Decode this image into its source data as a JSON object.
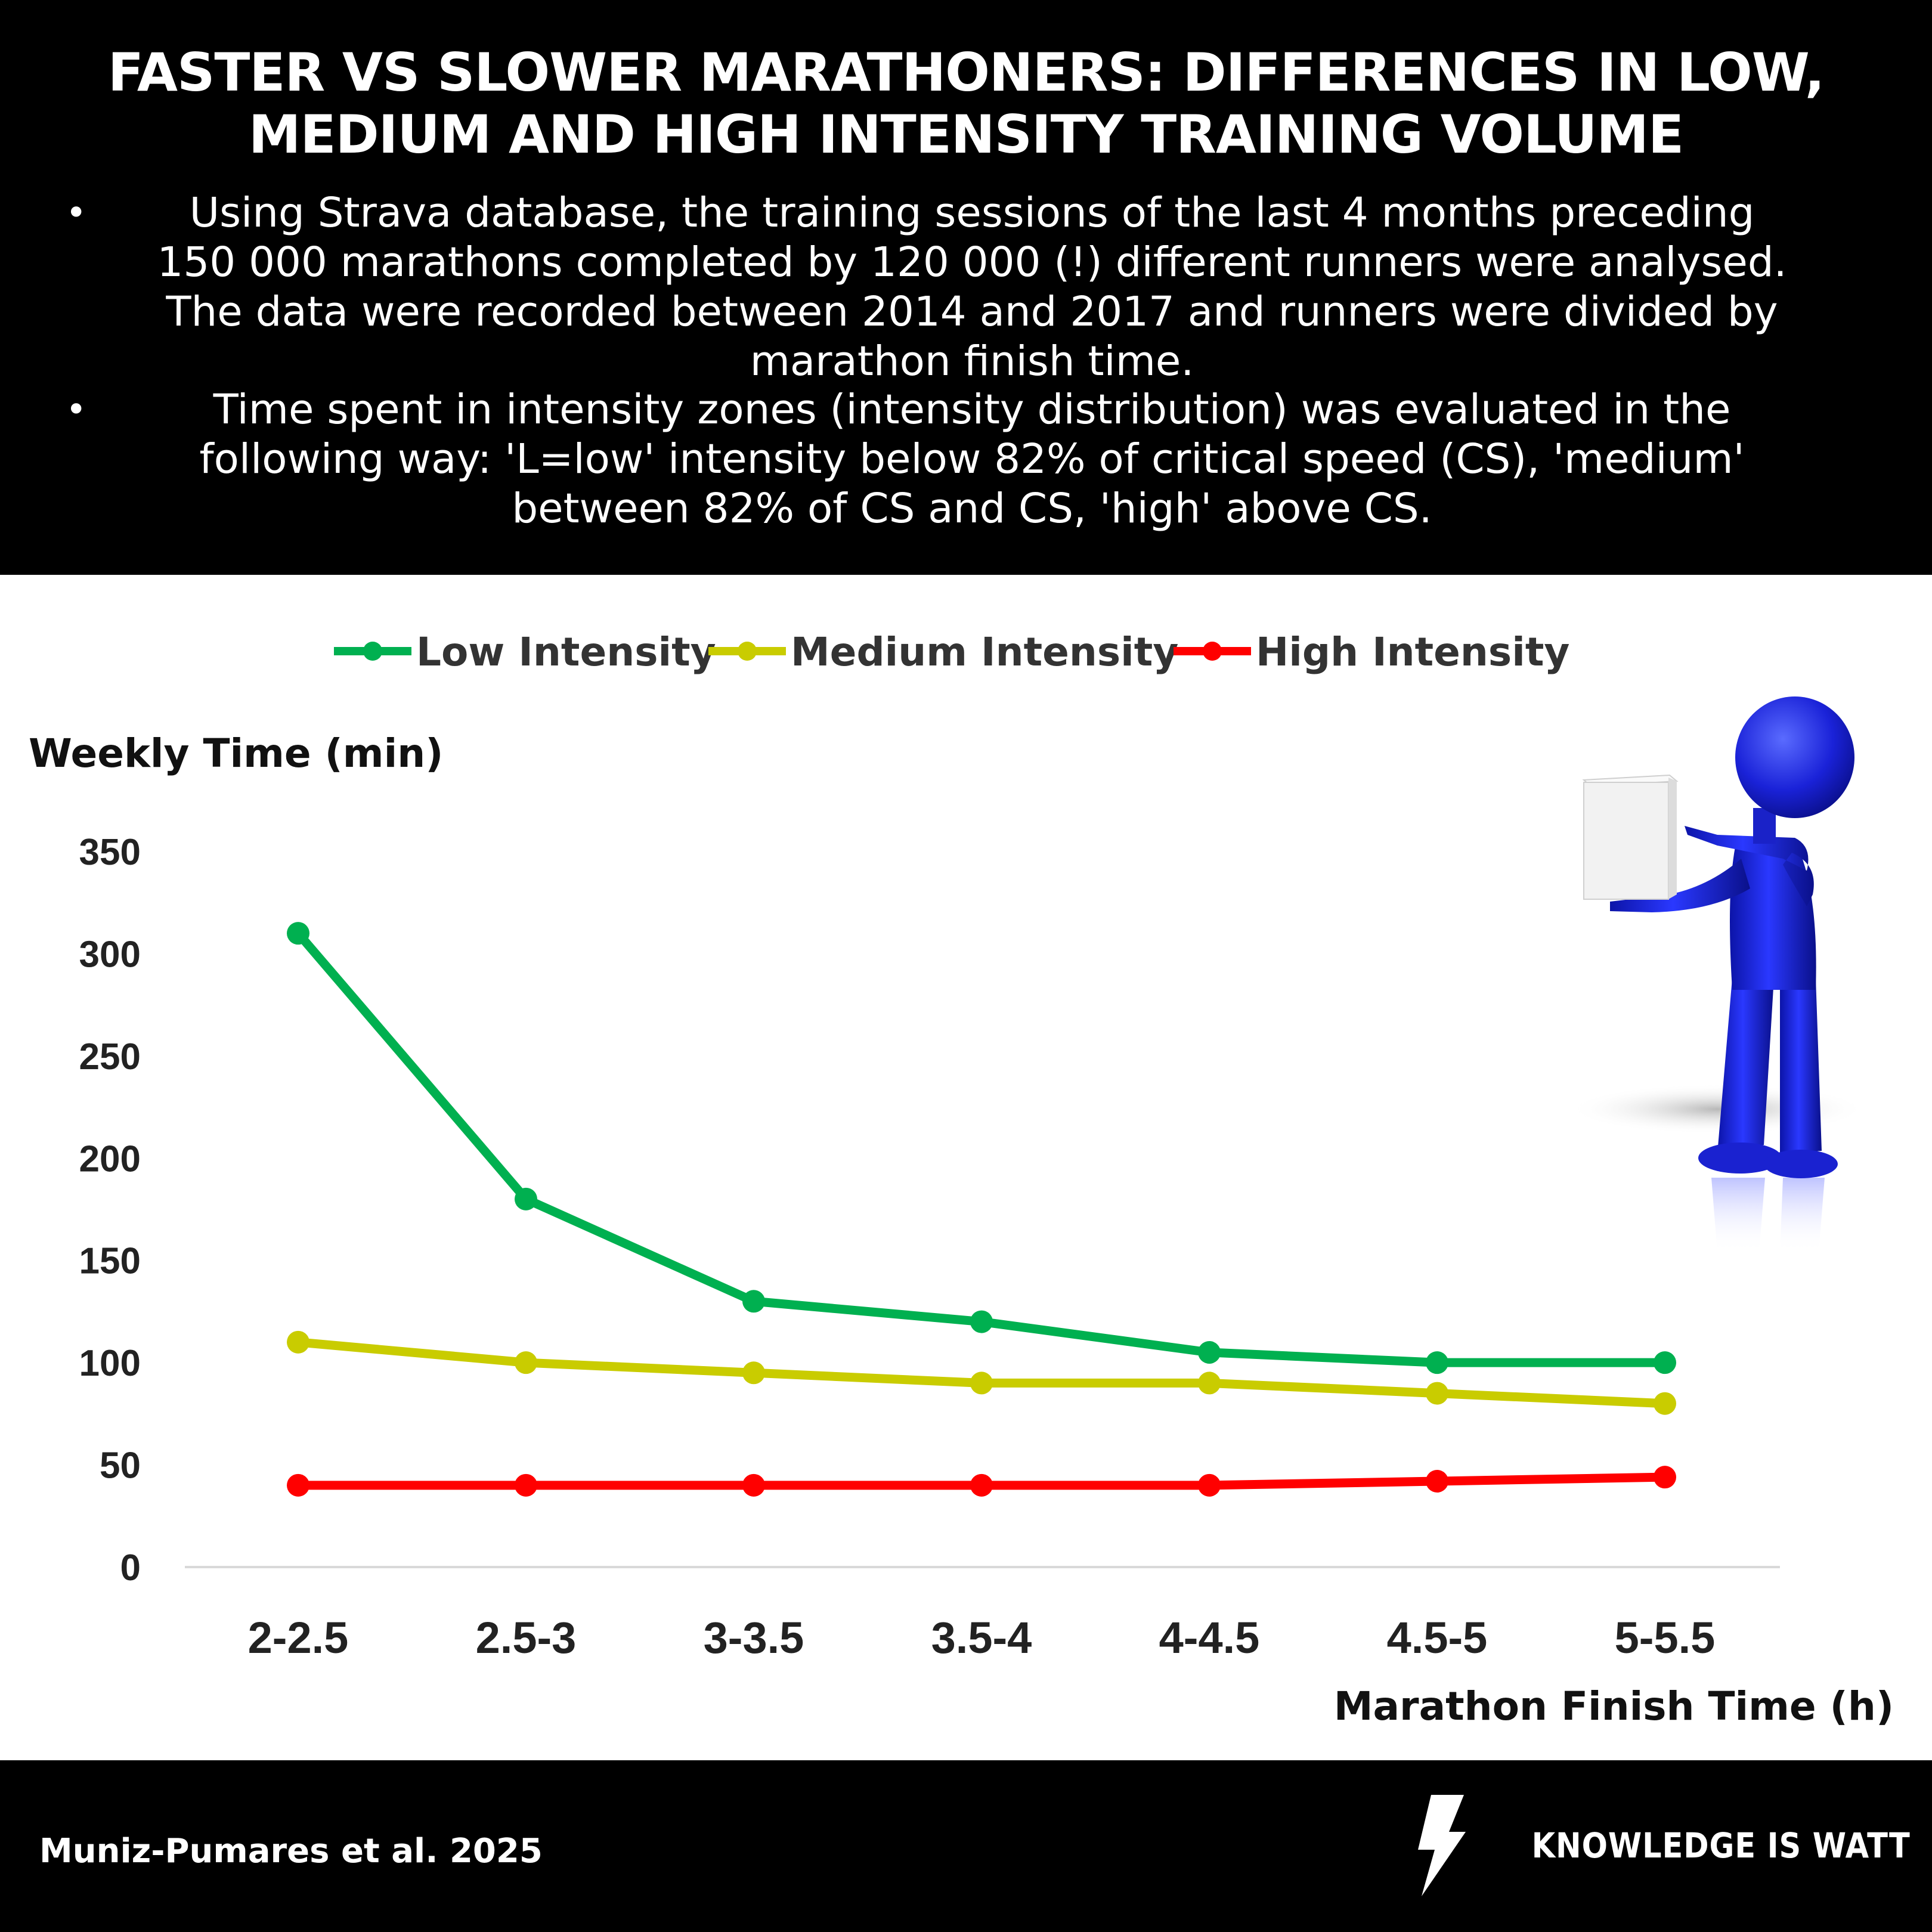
{
  "header": {
    "title_line1": "FASTER VS SLOWER MARATHONERS: DIFFERENCES IN LOW,",
    "title_line2": "MEDIUM AND HIGH INTENSITY TRAINING VOLUME",
    "bullets": [
      {
        "lines": [
          "Using Strava database, the training sessions of the last 4 months preceding",
          "150 000 marathons completed by 120 000 (!) different runners were analysed.",
          "The data were recorded between 2014 and 2017 and runners were divided by",
          "marathon finish time."
        ]
      },
      {
        "lines": [
          "Time spent in intensity zones (intensity distribution) was evaluated in the",
          "following way: 'L=low' intensity below 82% of critical speed (CS), 'medium'",
          "between 82% of CS and CS, 'high' above CS."
        ]
      }
    ]
  },
  "footer": {
    "citation": "Muniz-Pumares et al. 2025",
    "brand": "KNOWLEDGE IS WATT"
  },
  "chart_data": {
    "type": "line",
    "ylabel": "Weekly Time (min)",
    "xlabel": "Marathon Finish Time (h)",
    "categories": [
      "2-2.5",
      "2.5-3",
      "3-3.5",
      "3.5-4",
      "4-4.5",
      "4.5-5",
      "5-5.5"
    ],
    "ylim": [
      0,
      350
    ],
    "yticks": [
      0,
      50,
      100,
      150,
      200,
      250,
      300,
      350
    ],
    "legend_position": "top-center",
    "grid": false,
    "series": [
      {
        "name": "Low Intensity",
        "color": "#00b050",
        "values": [
          310,
          180,
          130,
          120,
          105,
          100,
          100
        ]
      },
      {
        "name": "Medium Intensity",
        "color": "#c9cc00",
        "values": [
          110,
          100,
          95,
          90,
          90,
          85,
          80
        ]
      },
      {
        "name": "High Intensity",
        "color": "#ff0000",
        "values": [
          40,
          40,
          40,
          40,
          40,
          42,
          44
        ]
      }
    ]
  }
}
